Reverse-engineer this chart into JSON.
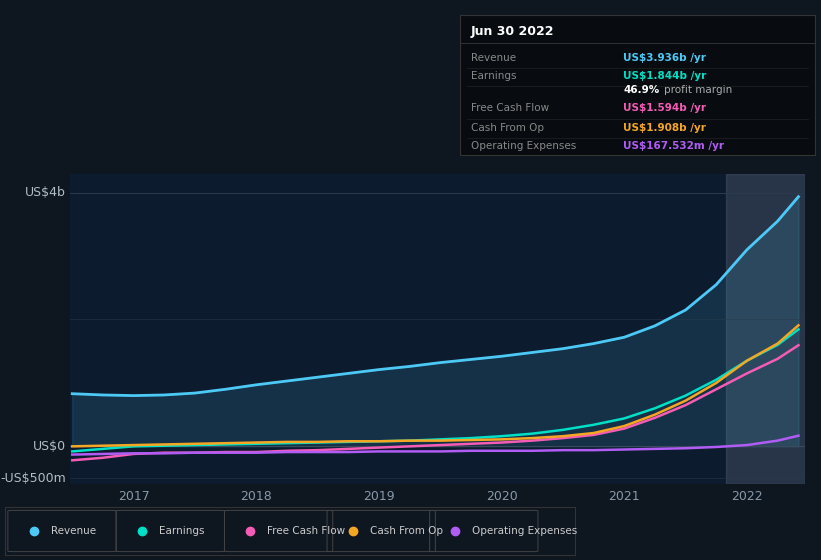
{
  "bg_color": "#0e1620",
  "chart_bg": "#0d1b2e",
  "title_box_bg": "#080c10",
  "years": [
    2016.5,
    2016.75,
    2017.0,
    2017.25,
    2017.5,
    2017.75,
    2018.0,
    2018.25,
    2018.5,
    2018.75,
    2019.0,
    2019.25,
    2019.5,
    2019.75,
    2020.0,
    2020.25,
    2020.5,
    2020.75,
    2021.0,
    2021.25,
    2021.5,
    2021.75,
    2022.0,
    2022.25,
    2022.42
  ],
  "revenue": [
    0.83,
    0.81,
    0.8,
    0.81,
    0.84,
    0.9,
    0.97,
    1.03,
    1.09,
    1.15,
    1.21,
    1.26,
    1.32,
    1.37,
    1.42,
    1.48,
    1.54,
    1.62,
    1.72,
    1.9,
    2.15,
    2.55,
    3.1,
    3.55,
    3.936
  ],
  "earnings": [
    -0.08,
    -0.04,
    0.0,
    0.01,
    0.02,
    0.03,
    0.04,
    0.05,
    0.06,
    0.07,
    0.08,
    0.09,
    0.11,
    0.13,
    0.16,
    0.2,
    0.26,
    0.34,
    0.44,
    0.6,
    0.8,
    1.05,
    1.35,
    1.6,
    1.844
  ],
  "free_cash": [
    -0.22,
    -0.18,
    -0.12,
    -0.1,
    -0.1,
    -0.09,
    -0.09,
    -0.07,
    -0.06,
    -0.04,
    -0.02,
    0.0,
    0.02,
    0.04,
    0.06,
    0.09,
    0.13,
    0.18,
    0.28,
    0.45,
    0.65,
    0.9,
    1.15,
    1.38,
    1.594
  ],
  "cash_from_op": [
    0.0,
    0.01,
    0.02,
    0.03,
    0.04,
    0.05,
    0.06,
    0.07,
    0.07,
    0.08,
    0.08,
    0.09,
    0.09,
    0.1,
    0.11,
    0.13,
    0.16,
    0.21,
    0.32,
    0.5,
    0.72,
    1.0,
    1.35,
    1.62,
    1.908
  ],
  "op_expenses": [
    -0.13,
    -0.12,
    -0.11,
    -0.11,
    -0.1,
    -0.1,
    -0.1,
    -0.09,
    -0.09,
    -0.09,
    -0.08,
    -0.08,
    -0.08,
    -0.07,
    -0.07,
    -0.07,
    -0.06,
    -0.06,
    -0.05,
    -0.04,
    -0.03,
    -0.01,
    0.02,
    0.09,
    0.168
  ],
  "revenue_color": "#4dc9f6",
  "earnings_color": "#00e0c6",
  "free_cash_color": "#f45cb5",
  "cash_from_op_color": "#f5a623",
  "op_expenses_color": "#b05cf5",
  "highlight_x_start": 2021.83,
  "ylim": [
    -0.6,
    4.3
  ],
  "ylabel_top": "US$4b",
  "ylabel_zero": "US$0",
  "ylabel_neg": "-US$500m",
  "xtick_positions": [
    2017,
    2018,
    2019,
    2020,
    2021,
    2022
  ],
  "tooltip": {
    "title": "Jun 30 2022",
    "rows": [
      {
        "label": "Revenue",
        "value": "US$3.936b /yr",
        "color": "#4dc9f6"
      },
      {
        "label": "Earnings",
        "value": "US$1.844b /yr",
        "color": "#00e0c6"
      },
      {
        "label": "",
        "value1": "46.9%",
        "value2": " profit margin"
      },
      {
        "label": "Free Cash Flow",
        "value": "US$1.594b /yr",
        "color": "#f45cb5"
      },
      {
        "label": "Cash From Op",
        "value": "US$1.908b /yr",
        "color": "#f5a623"
      },
      {
        "label": "Operating Expenses",
        "value": "US$167.532m /yr",
        "color": "#b05cf5"
      }
    ]
  },
  "legend": [
    {
      "label": "Revenue",
      "color": "#4dc9f6"
    },
    {
      "label": "Earnings",
      "color": "#00e0c6"
    },
    {
      "label": "Free Cash Flow",
      "color": "#f45cb5"
    },
    {
      "label": "Cash From Op",
      "color": "#f5a623"
    },
    {
      "label": "Operating Expenses",
      "color": "#b05cf5"
    }
  ]
}
